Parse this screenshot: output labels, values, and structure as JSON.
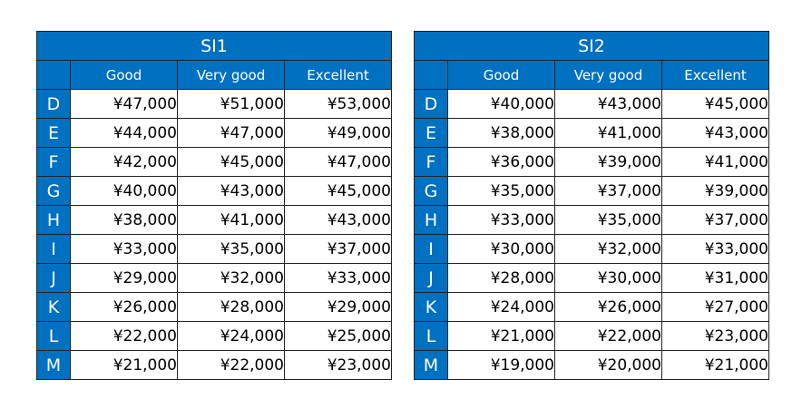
{
  "tables": [
    {
      "title": "SI1",
      "columns": [
        "Good",
        "Very good",
        "Excellent"
      ],
      "rows": [
        {
          "grade": "D",
          "values": [
            "¥47,000",
            "¥51,000",
            "¥53,000"
          ]
        },
        {
          "grade": "E",
          "values": [
            "¥44,000",
            "¥47,000",
            "¥49,000"
          ]
        },
        {
          "grade": "F",
          "values": [
            "¥42,000",
            "¥45,000",
            "¥47,000"
          ]
        },
        {
          "grade": "G",
          "values": [
            "¥40,000",
            "¥43,000",
            "¥45,000"
          ]
        },
        {
          "grade": "H",
          "values": [
            "¥38,000",
            "¥41,000",
            "¥43,000"
          ]
        },
        {
          "grade": "I",
          "values": [
            "¥33,000",
            "¥35,000",
            "¥37,000"
          ]
        },
        {
          "grade": "J",
          "values": [
            "¥29,000",
            "¥32,000",
            "¥33,000"
          ]
        },
        {
          "grade": "K",
          "values": [
            "¥26,000",
            "¥28,000",
            "¥29,000"
          ]
        },
        {
          "grade": "L",
          "values": [
            "¥22,000",
            "¥24,000",
            "¥25,000"
          ]
        },
        {
          "grade": "M",
          "values": [
            "¥21,000",
            "¥22,000",
            "¥23,000"
          ]
        }
      ]
    },
    {
      "title": "SI2",
      "columns": [
        "Good",
        "Very good",
        "Excellent"
      ],
      "rows": [
        {
          "grade": "D",
          "values": [
            "¥40,000",
            "¥43,000",
            "¥45,000"
          ]
        },
        {
          "grade": "E",
          "values": [
            "¥38,000",
            "¥41,000",
            "¥43,000"
          ]
        },
        {
          "grade": "F",
          "values": [
            "¥36,000",
            "¥39,000",
            "¥41,000"
          ]
        },
        {
          "grade": "G",
          "values": [
            "¥35,000",
            "¥37,000",
            "¥39,000"
          ]
        },
        {
          "grade": "H",
          "values": [
            "¥33,000",
            "¥35,000",
            "¥37,000"
          ]
        },
        {
          "grade": "I",
          "values": [
            "¥30,000",
            "¥32,000",
            "¥33,000"
          ]
        },
        {
          "grade": "J",
          "values": [
            "¥28,000",
            "¥30,000",
            "¥31,000"
          ]
        },
        {
          "grade": "K",
          "values": [
            "¥24,000",
            "¥26,000",
            "¥27,000"
          ]
        },
        {
          "grade": "L",
          "values": [
            "¥21,000",
            "¥22,000",
            "¥23,000"
          ]
        },
        {
          "grade": "M",
          "values": [
            "¥19,000",
            "¥20,000",
            "¥21,000"
          ]
        }
      ]
    }
  ],
  "colors": {
    "header_bg": "#0070c0",
    "header_text": "#ffffff",
    "border": "#222222"
  }
}
